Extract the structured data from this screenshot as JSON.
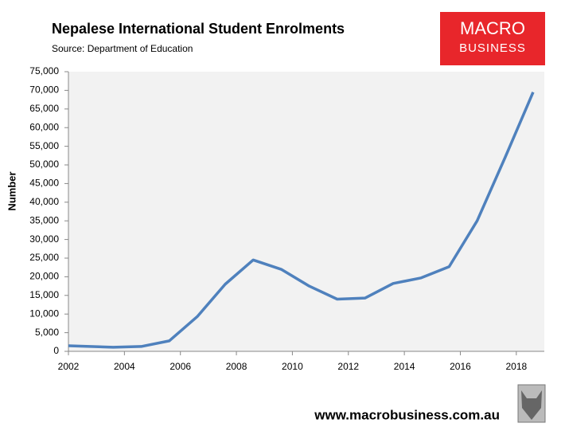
{
  "chart_data": {
    "type": "line",
    "title": "Nepalese International Student Enrolments",
    "subtitle": "Source: Department of Education",
    "ylabel": "Number",
    "x": [
      2002,
      2003.6,
      2004.6,
      2005.6,
      2006.6,
      2007.6,
      2008.6,
      2009.6,
      2010.6,
      2011.6,
      2012.6,
      2013.6,
      2014.6,
      2015.6,
      2016.6,
      2017.6,
      2018.6
    ],
    "series": [
      {
        "name": "Nepal",
        "color": "#4f81bd",
        "values": [
          1500,
          1100,
          1300,
          2800,
          9300,
          18000,
          24500,
          22000,
          17500,
          14000,
          14300,
          18200,
          19700,
          22700,
          35000,
          52000,
          69500
        ]
      }
    ],
    "xlim": [
      2002,
      2019
    ],
    "xticks": [
      2002,
      2004,
      2006,
      2008,
      2010,
      2012,
      2014,
      2016,
      2018
    ],
    "ylim": [
      0,
      75000
    ],
    "yticks": [
      0,
      {
        "value": 5000,
        "label": "5,000"
      },
      {
        "value": 10000,
        "label": "10,000"
      },
      {
        "value": 15000,
        "label": "15,000"
      },
      {
        "value": 20000,
        "label": "20,000"
      },
      {
        "value": 25000,
        "label": "25,000"
      },
      {
        "value": 30000,
        "label": "30,000"
      },
      {
        "value": 35000,
        "label": "35,000"
      },
      {
        "value": 40000,
        "label": "40,000"
      },
      {
        "value": 45000,
        "label": "45,000"
      },
      {
        "value": 50000,
        "label": "50,000"
      },
      {
        "value": 55000,
        "label": "55,000"
      },
      {
        "value": 60000,
        "label": "60,000"
      },
      {
        "value": 65000,
        "label": "65,000"
      },
      {
        "value": 70000,
        "label": "70,000"
      },
      {
        "value": 75000,
        "label": "75,000"
      }
    ],
    "grid": false
  },
  "logo": {
    "line1": "MACRO",
    "line2": "BUSINESS"
  },
  "footer": "www.macrobusiness.com.au"
}
